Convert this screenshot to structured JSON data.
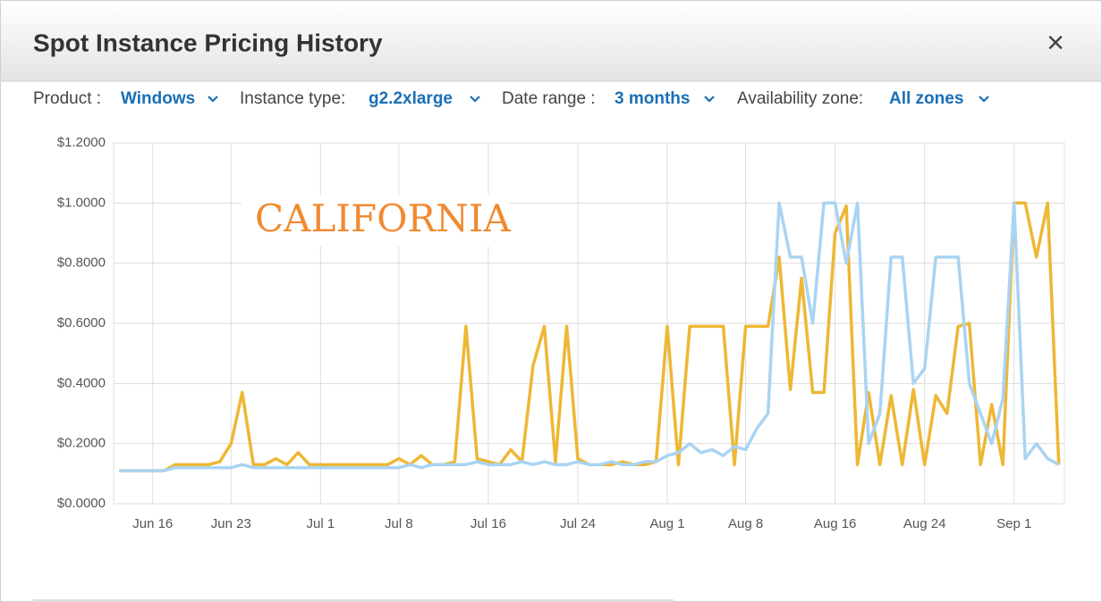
{
  "header": {
    "title": "Spot Instance Pricing History",
    "close": "×"
  },
  "filters": [
    {
      "label": "Product :",
      "value": "Windows"
    },
    {
      "label": "Instance type:",
      "value": "g2.2xlarge"
    },
    {
      "label": "Date range :",
      "value": "3 months"
    },
    {
      "label": "Availability zone:",
      "value": "All zones"
    }
  ],
  "chart_data": {
    "type": "line",
    "annotation": "CALIFORNIA",
    "grid": true,
    "x": [
      "Jun 13",
      "Jun 14",
      "Jun 15",
      "Jun 16",
      "Jun 17",
      "Jun 18",
      "Jun 19",
      "Jun 20",
      "Jun 21",
      "Jun 22",
      "Jun 23",
      "Jun 24",
      "Jun 25",
      "Jun 26",
      "Jun 27",
      "Jun 28",
      "Jun 29",
      "Jun 30",
      "Jul 1",
      "Jul 2",
      "Jul 3",
      "Jul 4",
      "Jul 5",
      "Jul 6",
      "Jul 7",
      "Jul 8",
      "Jul 9",
      "Jul 10",
      "Jul 11",
      "Jul 12",
      "Jul 13",
      "Jul 14",
      "Jul 15",
      "Jul 16",
      "Jul 17",
      "Jul 18",
      "Jul 19",
      "Jul 20",
      "Jul 21",
      "Jul 22",
      "Jul 23",
      "Jul 24",
      "Jul 25",
      "Jul 26",
      "Jul 27",
      "Jul 28",
      "Jul 29",
      "Jul 30",
      "Jul 31",
      "Aug 1",
      "Aug 2",
      "Aug 3",
      "Aug 4",
      "Aug 5",
      "Aug 6",
      "Aug 7",
      "Aug 8",
      "Aug 9",
      "Aug 10",
      "Aug 11",
      "Aug 12",
      "Aug 13",
      "Aug 14",
      "Aug 15",
      "Aug 16",
      "Aug 17",
      "Aug 18",
      "Aug 19",
      "Aug 20",
      "Aug 21",
      "Aug 22",
      "Aug 23",
      "Aug 24",
      "Aug 25",
      "Aug 26",
      "Aug 27",
      "Aug 28",
      "Aug 29",
      "Aug 30",
      "Aug 31",
      "Sep 1",
      "Sep 2",
      "Sep 3",
      "Sep 4",
      "Sep 5"
    ],
    "series": [
      {
        "color": "#eeb734",
        "values": [
          0.11,
          0.11,
          0.11,
          0.11,
          0.11,
          0.13,
          0.13,
          0.13,
          0.13,
          0.14,
          0.2,
          0.37,
          0.13,
          0.13,
          0.15,
          0.13,
          0.17,
          0.13,
          0.13,
          0.13,
          0.13,
          0.13,
          0.13,
          0.13,
          0.13,
          0.15,
          0.13,
          0.16,
          0.13,
          0.13,
          0.14,
          0.59,
          0.15,
          0.14,
          0.13,
          0.18,
          0.14,
          0.46,
          0.59,
          0.14,
          0.59,
          0.15,
          0.13,
          0.13,
          0.13,
          0.14,
          0.13,
          0.13,
          0.14,
          0.59,
          0.13,
          0.59,
          0.59,
          0.59,
          0.59,
          0.13,
          0.59,
          0.59,
          0.59,
          0.82,
          0.38,
          0.75,
          0.37,
          0.37,
          0.9,
          0.99,
          0.13,
          0.37,
          0.13,
          0.36,
          0.13,
          0.38,
          0.13,
          0.36,
          0.3,
          0.59,
          0.6,
          0.13,
          0.33,
          0.13,
          1.0,
          1.0,
          0.82,
          1.0,
          0.13
        ]
      },
      {
        "color": "#a9d4f3",
        "values": [
          0.11,
          0.11,
          0.11,
          0.11,
          0.11,
          0.12,
          0.12,
          0.12,
          0.12,
          0.12,
          0.12,
          0.13,
          0.12,
          0.12,
          0.12,
          0.12,
          0.12,
          0.12,
          0.12,
          0.12,
          0.12,
          0.12,
          0.12,
          0.12,
          0.12,
          0.12,
          0.13,
          0.12,
          0.13,
          0.13,
          0.13,
          0.13,
          0.14,
          0.13,
          0.13,
          0.13,
          0.14,
          0.13,
          0.14,
          0.13,
          0.13,
          0.14,
          0.13,
          0.13,
          0.14,
          0.13,
          0.13,
          0.14,
          0.14,
          0.16,
          0.17,
          0.2,
          0.17,
          0.18,
          0.16,
          0.19,
          0.18,
          0.25,
          0.3,
          1.0,
          0.82,
          0.82,
          0.6,
          1.0,
          1.0,
          0.8,
          1.0,
          0.2,
          0.3,
          0.82,
          0.82,
          0.4,
          0.45,
          0.82,
          0.82,
          0.82,
          0.4,
          0.3,
          0.2,
          0.35,
          1.0,
          0.15,
          0.2,
          0.15,
          0.13
        ]
      }
    ],
    "ylim": [
      0,
      1.2
    ],
    "yticks": [
      {
        "value": 0,
        "label": "$0.0000"
      },
      {
        "value": 0.2,
        "label": "$0.2000"
      },
      {
        "value": 0.4,
        "label": "$0.4000"
      },
      {
        "value": 0.6,
        "label": "$0.6000"
      },
      {
        "value": 0.8,
        "label": "$0.8000"
      },
      {
        "value": 1.0,
        "label": "$1.0000"
      },
      {
        "value": 1.2,
        "label": "$1.2000"
      }
    ],
    "xticks": [
      "Jun 16",
      "Jun 23",
      "Jul 1",
      "Jul 8",
      "Jul 16",
      "Jul 24",
      "Aug 1",
      "Aug 8",
      "Aug 16",
      "Aug 24",
      "Sep 1"
    ]
  }
}
